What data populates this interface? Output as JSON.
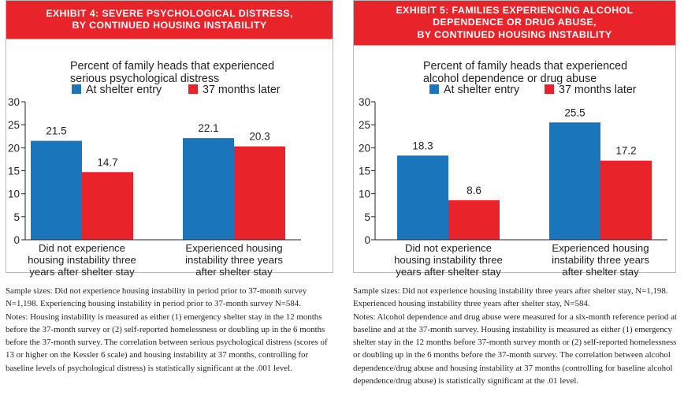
{
  "colors": {
    "entry": "#1b75bb",
    "later": "#e8242a",
    "banner": "#e8242a",
    "frame": "#b9babb",
    "text": "#231f20"
  },
  "exhibits": [
    {
      "title_lines": [
        "EXHIBIT 4: SEVERE PSYCHOLOGICAL DISTRESS,",
        "BY CONTINUED HOUSING INSTABILITY"
      ],
      "subtitle_lines": [
        "Percent of family heads that experienced",
        "serious psychological distress"
      ],
      "notes": [
        "Sample sizes: Did not experience housing instability in period prior to 37-month survey N=1,198. Experiencing housing instability in period prior to 37-month survey N=584.",
        "Notes: Housing instability is measured as either (1) emergency shelter stay in the 12 months before the 37-month survey or (2) self-reported homelessness or doubling up in the 6 months before the 37-month survey. The correlation between serious psychological distress (scores of 13 or higher on the Kessler 6 scale) and housing instability at 37 months, controlling for baseline levels of psychological distress) is statistically significant at the .001 level."
      ]
    },
    {
      "title_lines": [
        "EXHIBIT 5: FAMILIES EXPERIENCING ALCOHOL",
        "DEPENDENCE OR DRUG ABUSE,",
        "BY CONTINUED HOUSING INSTABILITY"
      ],
      "subtitle_lines": [
        "Percent of family heads that experienced",
        "alcohol dependence or drug abuse"
      ],
      "notes": [
        "Sample sizes: Did not experience housing instability three years after shelter stay,  N=1,198. Experienced housing instability three years after shelter stay, N=584.",
        "Notes: Alcohol dependence and drug abuse were measured for a six-month reference period at baseline and at the 37-month survey. Housing instability is measured as either (1) emergency shelter stay in the 12 months before 37-month survey month or (2) self-reported homelessness or doubling up in the 6 months before the 37-month survey. The correlation between alcohol dependence/drug abuse and housing instability at 37 months (controlling for baseline alcohol dependence/drug abuse) is statistically significant at the .01 level."
      ]
    }
  ],
  "chart_data": [
    {
      "type": "bar",
      "title": "Percent of family heads that experienced serious psychological distress",
      "categories": [
        [
          "Did not experience",
          "housing instability three",
          "years after shelter stay"
        ],
        [
          "Experienced housing",
          "instability three years",
          "after shelter stay"
        ]
      ],
      "series": [
        {
          "name": "At shelter entry",
          "values": [
            21.5,
            22.1
          ]
        },
        {
          "name": "37 months later",
          "values": [
            14.7,
            20.3
          ]
        }
      ],
      "ylim": [
        0,
        30
      ],
      "yticks": [
        "0",
        "5",
        "10",
        "15",
        "20",
        "25",
        "30"
      ],
      "legend": "top",
      "grid": false
    },
    {
      "type": "bar",
      "title": "Percent of family heads that experienced alcohol dependence or drug abuse",
      "categories": [
        [
          "Did not experience",
          "housing instability three",
          "years after shelter stay"
        ],
        [
          "Experienced housing",
          "instability three years",
          "after shelter stay"
        ]
      ],
      "series": [
        {
          "name": "At shelter entry",
          "values": [
            18.3,
            25.5
          ]
        },
        {
          "name": "37 months later",
          "values": [
            8.6,
            17.2
          ]
        }
      ],
      "ylim": [
        0,
        30
      ],
      "yticks": [
        "0",
        "5",
        "10",
        "15",
        "20",
        "25",
        "30"
      ],
      "legend": "top",
      "grid": false
    }
  ]
}
